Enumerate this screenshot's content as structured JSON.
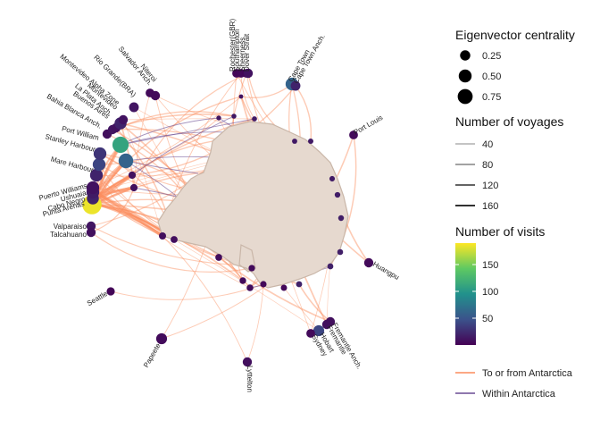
{
  "chart_data": {
    "type": "network-map",
    "title": "",
    "colors": {
      "antarctica_fill": "#e6d9cf",
      "antarctica_outline": "#c9b6a8",
      "edge_to_from": "#fb8c5c",
      "edge_within": "#6a4c93",
      "viridis": [
        "#440154",
        "#3b528b",
        "#21918c",
        "#5ec962",
        "#fde725"
      ]
    },
    "legend": {
      "centrality": {
        "title": "Eigenvector centrality",
        "items": [
          {
            "label": "0.25",
            "value": 0.25
          },
          {
            "label": "0.50",
            "value": 0.5
          },
          {
            "label": "0.75",
            "value": 0.75
          }
        ]
      },
      "voyages": {
        "title": "Number of voyages",
        "items": [
          {
            "label": "40",
            "value": 40
          },
          {
            "label": "80",
            "value": 80
          },
          {
            "label": "120",
            "value": 120
          },
          {
            "label": "160",
            "value": 160
          }
        ]
      },
      "visits": {
        "title": "Number of visits",
        "ticks": [
          {
            "label": "50",
            "value": 50
          },
          {
            "label": "100",
            "value": 100
          },
          {
            "label": "150",
            "value": 150
          }
        ],
        "range": [
          0,
          190
        ]
      },
      "edge_types": [
        {
          "label": "To or from Antarctica",
          "key": "edge_to_from"
        },
        {
          "label": "Within Antarctica",
          "key": "edge_within"
        }
      ]
    },
    "ports": [
      {
        "name": "Rochester(GBR)",
        "visits": 3,
        "centrality": 0.08,
        "lx": 263,
        "ly": 80,
        "rot": -90,
        "anchor": "start",
        "nx": 265,
        "ny": 82
      },
      {
        "name": "Southampton",
        "visits": 4,
        "centrality": 0.08,
        "lx": 268,
        "ly": 80,
        "rot": -90,
        "anchor": "start",
        "nx": 270,
        "ny": 82
      },
      {
        "name": "Sheerness",
        "visits": 3,
        "centrality": 0.08,
        "lx": 274,
        "ly": 80,
        "rot": -90,
        "anchor": "start",
        "nx": 276,
        "ny": 82
      },
      {
        "name": "Dover Strait",
        "visits": 10,
        "centrality": 0.1,
        "lx": 279,
        "ly": 80,
        "rot": -90,
        "anchor": "start",
        "nx": 278,
        "ny": 82
      },
      {
        "name": "Cape Town",
        "visits": 60,
        "centrality": 0.3,
        "lx": 327,
        "ly": 92,
        "rot": -60,
        "anchor": "start",
        "nx": 327,
        "ny": 94
      },
      {
        "name": "Cape Town Anch.",
        "visits": 20,
        "centrality": 0.12,
        "lx": 333,
        "ly": 94,
        "rot": -60,
        "anchor": "start",
        "nx": 331,
        "ny": 96
      },
      {
        "name": "Port Louis",
        "visits": 6,
        "centrality": 0.08,
        "lx": 398,
        "ly": 151,
        "rot": -30,
        "anchor": "start",
        "nx": 396,
        "ny": 151
      },
      {
        "name": "Huangpu",
        "visits": 5,
        "centrality": 0.1,
        "lx": 417,
        "ly": 297,
        "rot": 30,
        "anchor": "start",
        "nx": 413,
        "ny": 294
      },
      {
        "name": "Fremantle Anch.",
        "visits": 8,
        "centrality": 0.1,
        "lx": 372,
        "ly": 363,
        "rot": 60,
        "anchor": "start",
        "nx": 370,
        "ny": 360
      },
      {
        "name": "Fremantle",
        "visits": 8,
        "centrality": 0.1,
        "lx": 366,
        "ly": 366,
        "rot": 60,
        "anchor": "start",
        "nx": 366,
        "ny": 363
      },
      {
        "name": "Hobart",
        "visits": 40,
        "centrality": 0.18,
        "lx": 358,
        "ly": 374,
        "rot": 60,
        "anchor": "start",
        "nx": 357,
        "ny": 370
      },
      {
        "name": "Sydney",
        "visits": 5,
        "centrality": 0.08,
        "lx": 349,
        "ly": 376,
        "rot": 60,
        "anchor": "start",
        "nx": 348,
        "ny": 373
      },
      {
        "name": "Lyttelton",
        "visits": 8,
        "centrality": 0.1,
        "lx": 277,
        "ly": 409,
        "rot": 90,
        "anchor": "start",
        "nx": 277,
        "ny": 405
      },
      {
        "name": "Papeete",
        "visits": 6,
        "centrality": 0.18,
        "lx": 180,
        "ly": 386,
        "rot": -60,
        "anchor": "end",
        "nx": 181,
        "ny": 379
      },
      {
        "name": "Seattle",
        "visits": 3,
        "centrality": 0.06,
        "lx": 121,
        "ly": 330,
        "rot": -30,
        "anchor": "end",
        "nx": 124,
        "ny": 326
      },
      {
        "name": "Valparaiso",
        "visits": 12,
        "centrality": 0.1,
        "lx": 97,
        "ly": 256,
        "rot": 0,
        "anchor": "end",
        "nx": 102,
        "ny": 253
      },
      {
        "name": "Talcahuano",
        "visits": 8,
        "centrality": 0.1,
        "lx": 97,
        "ly": 265,
        "rot": 0,
        "anchor": "end",
        "nx": 102,
        "ny": 260
      },
      {
        "name": "Punta Arenas",
        "visits": 185,
        "centrality": 0.95,
        "lx": 95,
        "ly": 230,
        "rot": -15,
        "anchor": "end",
        "nx": 103,
        "ny": 229
      },
      {
        "name": "Cabo Negro",
        "visits": 20,
        "centrality": 0.25,
        "lx": 96,
        "ly": 225,
        "rot": -15,
        "anchor": "end",
        "nx": 104,
        "ny": 222
      },
      {
        "name": "Ushuaia",
        "visits": 15,
        "centrality": 0.3,
        "lx": 97,
        "ly": 218,
        "rot": -15,
        "anchor": "end",
        "nx": 104,
        "ny": 215
      },
      {
        "name": "Puerto Williams",
        "visits": 10,
        "centrality": 0.3,
        "lx": 98,
        "ly": 210,
        "rot": -15,
        "anchor": "end",
        "nx": 104,
        "ny": 210
      },
      {
        "name": "Mare Harbour",
        "visits": 20,
        "centrality": 0.3,
        "lx": 104,
        "ly": 193,
        "rot": 15,
        "anchor": "end",
        "nx": 108,
        "ny": 196
      },
      {
        "name": "Stanley Harbour",
        "visits": 40,
        "centrality": 0.3,
        "lx": 106,
        "ly": 170,
        "rot": 15,
        "anchor": "end",
        "nx": 111,
        "ny": 184
      },
      {
        "name": "Port William",
        "visits": 30,
        "centrality": 0.3,
        "lx": 110,
        "ly": 157,
        "rot": 15,
        "anchor": "end",
        "nx": 112,
        "ny": 172
      },
      {
        "name": "Bahia Blanca Anch.",
        "visits": 8,
        "centrality": 0.1,
        "lx": 112,
        "ly": 144,
        "rot": 30,
        "anchor": "end",
        "nx": 120,
        "ny": 150
      },
      {
        "name": "Buenos Aires",
        "visits": 12,
        "centrality": 0.1,
        "lx": 120,
        "ly": 133,
        "rot": 35,
        "anchor": "end",
        "nx": 126,
        "ny": 145
      },
      {
        "name": "La Plata Anch.",
        "visits": 10,
        "centrality": 0.1,
        "lx": 123,
        "ly": 130,
        "rot": 40,
        "anchor": "end",
        "nx": 130,
        "ny": 143
      },
      {
        "name": "Montevideo",
        "visits": 20,
        "centrality": 0.25,
        "lx": 129,
        "ly": 123,
        "rot": 40,
        "anchor": "end",
        "nx": 135,
        "ny": 138
      },
      {
        "name": "Montevideo Alpha Zone",
        "visits": 10,
        "centrality": 0.1,
        "lx": 131,
        "ly": 118,
        "rot": 40,
        "anchor": "end",
        "nx": 138,
        "ny": 134
      },
      {
        "name": "Rio Grande(BRA)",
        "visits": 12,
        "centrality": 0.12,
        "lx": 149,
        "ly": 109,
        "rot": 45,
        "anchor": "end",
        "nx": 150,
        "ny": 120
      },
      {
        "name": "Salvador Anch.",
        "visits": 5,
        "centrality": 0.08,
        "lx": 167,
        "ly": 96,
        "rot": 50,
        "anchor": "end",
        "nx": 168,
        "ny": 104
      },
      {
        "name": "Niteroi",
        "visits": 5,
        "centrality": 0.1,
        "lx": 172,
        "ly": 92,
        "rot": 50,
        "anchor": "end",
        "nx": 174,
        "ny": 107
      }
    ],
    "hubs": [
      {
        "name": "hub-antarctic-peninsula",
        "visits": 110,
        "centrality": 0.6,
        "x": 135,
        "y": 162
      },
      {
        "name": "hub-south-georgia",
        "visits": 60,
        "centrality": 0.45,
        "x": 141,
        "y": 180
      }
    ]
  }
}
